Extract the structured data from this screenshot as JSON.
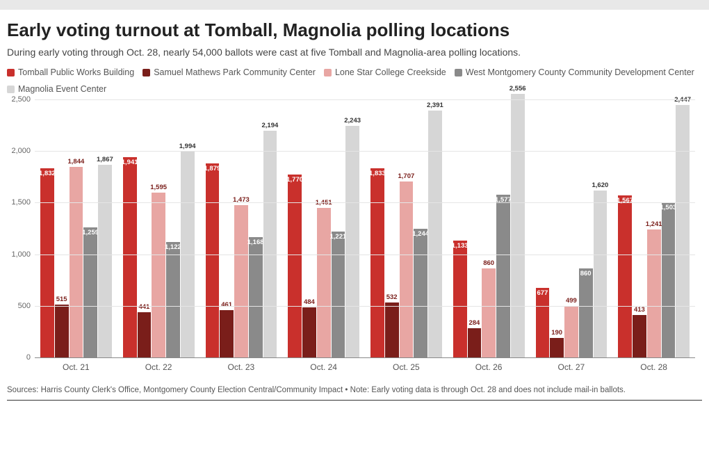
{
  "title": "Early voting turnout at Tomball, Magnolia polling locations",
  "subtitle": "During early voting through Oct. 28, nearly 54,000 ballots were cast at five Tomball and Magnolia-area polling locations.",
  "footer": "Sources: Harris County Clerk's Office, Montgomery County Election Central/Community Impact • Note: Early voting data is through Oct. 28 and does not include mail-in ballots.",
  "chart": {
    "type": "grouped-bar",
    "ylim": [
      0,
      2500
    ],
    "ytick_step": 500,
    "yticks": [
      "0",
      "500",
      "1,000",
      "1,500",
      "2,000",
      "2,500"
    ],
    "grid_color": "#e5e5e5",
    "background": "#ffffff",
    "label_fontsize": 11,
    "series": [
      {
        "name": "Tomball Public Works Building",
        "color": "#c9302c",
        "label_color": "#ffffff",
        "label_inside": true
      },
      {
        "name": "Samuel Mathews Park Community Center",
        "color": "#7a1e1a",
        "label_color": "#7a1e1a",
        "label_inside": false
      },
      {
        "name": "Lone Star College Creekside",
        "color": "#e8a6a3",
        "label_color": "#7a1e1a",
        "label_inside": false
      },
      {
        "name": "West Montgomery County Community Development Center",
        "color": "#8a8a8a",
        "label_color": "#333333",
        "label_inside": true
      },
      {
        "name": "Magnolia Event Center",
        "color": "#d6d6d6",
        "label_color": "#333333",
        "label_inside": false
      }
    ],
    "categories": [
      "Oct. 21",
      "Oct. 22",
      "Oct. 23",
      "Oct. 24",
      "Oct. 25",
      "Oct. 26",
      "Oct. 27",
      "Oct. 28"
    ],
    "data": [
      [
        1832,
        515,
        1844,
        1259,
        1867
      ],
      [
        1941,
        441,
        1595,
        1122,
        1994
      ],
      [
        1879,
        461,
        1473,
        1168,
        2194
      ],
      [
        1770,
        484,
        1451,
        1221,
        2243
      ],
      [
        1833,
        532,
        1707,
        1244,
        2391
      ],
      [
        1133,
        284,
        860,
        1577,
        2556
      ],
      [
        677,
        190,
        499,
        860,
        1620
      ],
      [
        1567,
        413,
        1241,
        1503,
        2447
      ]
    ]
  }
}
